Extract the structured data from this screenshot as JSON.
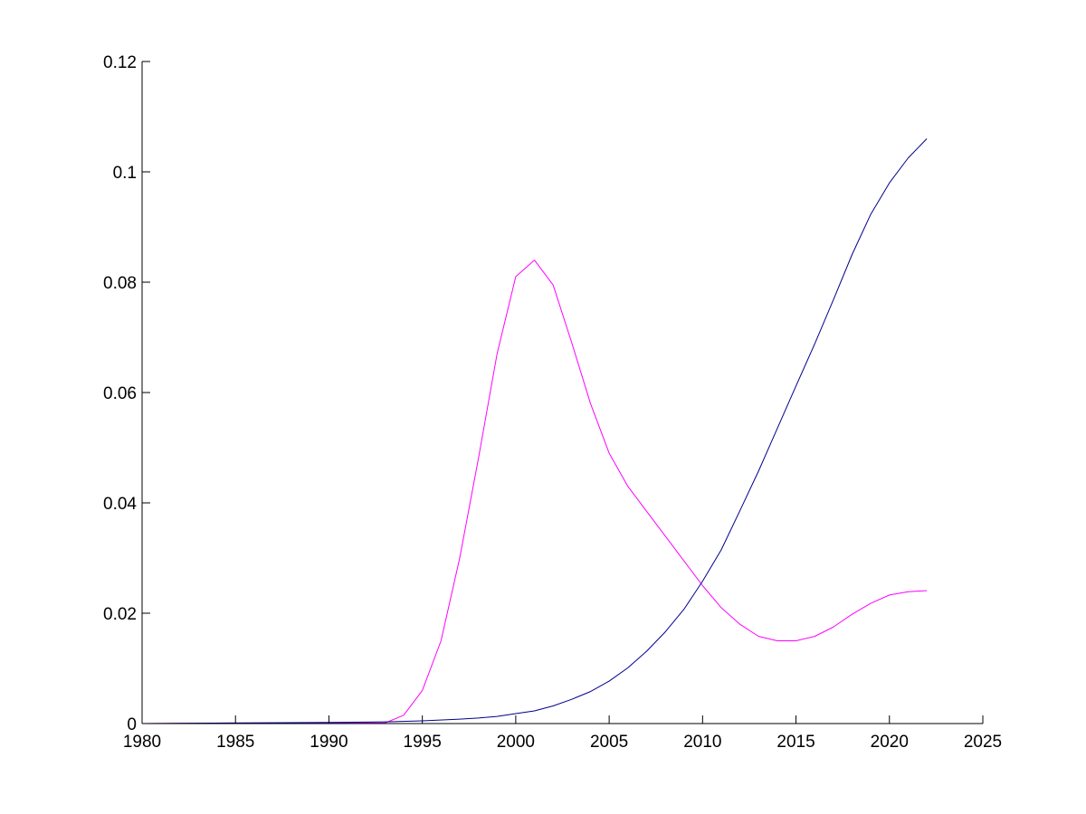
{
  "chart_data": {
    "type": "line",
    "title": "",
    "xlabel": "",
    "ylabel": "",
    "xlim": [
      1980,
      2025
    ],
    "ylim": [
      0,
      0.12
    ],
    "grid": false,
    "legend": "none",
    "x_ticks": [
      1980,
      1985,
      1990,
      1995,
      2000,
      2005,
      2010,
      2015,
      2020,
      2025
    ],
    "x_tick_labels": [
      "1980",
      "1985",
      "1990",
      "1995",
      "2000",
      "2005",
      "2010",
      "2015",
      "2020",
      "2025"
    ],
    "y_ticks": [
      0,
      0.02,
      0.04,
      0.06,
      0.08,
      0.1,
      0.12
    ],
    "y_tick_labels": [
      "0",
      "0.02",
      "0.04",
      "0.06",
      "0.08",
      "0.1",
      "0.12"
    ],
    "series": [
      {
        "color": "#ff00ff",
        "x": [
          1980,
          1985,
          1990,
          1993,
          1994,
          1995,
          1996,
          1997,
          1998,
          1999,
          2000,
          2001,
          2002,
          2003,
          2004,
          2005,
          2006,
          2007,
          2008,
          2009,
          2010,
          2011,
          2012,
          2013,
          2014,
          2015,
          2016,
          2017,
          2018,
          2019,
          2020,
          2021,
          2022
        ],
        "y": [
          0,
          0.0001,
          0.0001,
          0.0001,
          0.0015,
          0.006,
          0.015,
          0.03,
          0.048,
          0.067,
          0.081,
          0.084,
          0.0795,
          0.069,
          0.058,
          0.049,
          0.043,
          0.0385,
          0.034,
          0.0295,
          0.025,
          0.021,
          0.018,
          0.0158,
          0.015,
          0.015,
          0.0158,
          0.0175,
          0.0198,
          0.0218,
          0.0233,
          0.0239,
          0.0241
        ]
      },
      {
        "color": "#00008b",
        "x": [
          1980,
          1985,
          1990,
          1993,
          1995,
          1997,
          1998,
          1999,
          2000,
          2001,
          2002,
          2003,
          2004,
          2005,
          2006,
          2007,
          2008,
          2009,
          2010,
          2011,
          2012,
          2013,
          2014,
          2015,
          2016,
          2017,
          2018,
          2019,
          2020,
          2021,
          2022
        ],
        "y": [
          0,
          0.0001,
          0.0002,
          0.0003,
          0.0005,
          0.0008,
          0.001,
          0.0013,
          0.0018,
          0.0023,
          0.0032,
          0.0044,
          0.0058,
          0.0077,
          0.0101,
          0.0131,
          0.0166,
          0.0207,
          0.0258,
          0.0315,
          0.0386,
          0.0458,
          0.0535,
          0.0612,
          0.0688,
          0.0768,
          0.085,
          0.0923,
          0.098,
          0.1025,
          0.106
        ]
      }
    ]
  }
}
